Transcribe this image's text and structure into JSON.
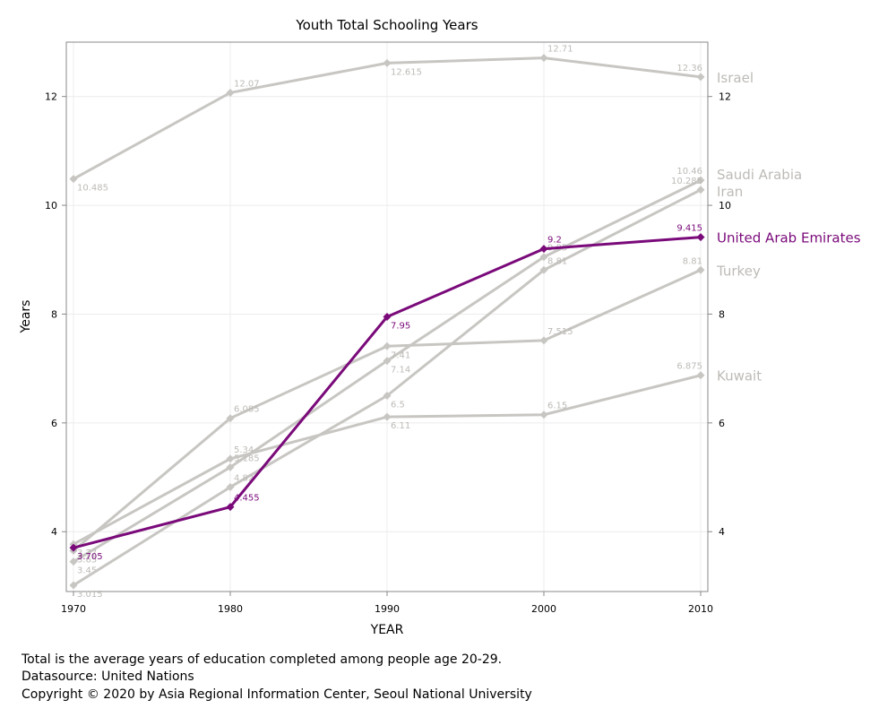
{
  "chart_data": {
    "type": "line",
    "title": "Youth Total Schooling Years",
    "xlabel": "YEAR",
    "ylabel": "Years",
    "x": [
      1970,
      1980,
      1990,
      2000,
      2010
    ],
    "xlim": [
      1970,
      2010
    ],
    "ylim": [
      2.9,
      13.0
    ],
    "yticks": [
      4,
      6,
      8,
      10,
      12
    ],
    "grid": true,
    "highlight_color": "#7a0a7a",
    "base_color": "#c8c6c2",
    "series": [
      {
        "name": "Israel",
        "values": [
          10.485,
          12.07,
          12.615,
          12.71,
          12.36
        ],
        "labels": [
          "10.485",
          "12.07",
          "12.615",
          "12.71",
          "12.36"
        ],
        "highlight": false
      },
      {
        "name": "Saudi Arabia",
        "values": [
          3.45,
          5.185,
          7.14,
          9.05,
          10.46
        ],
        "labels": [
          "3.45",
          "5.185",
          "7.14",
          "9.05",
          "10.46"
        ],
        "highlight": false
      },
      {
        "name": "Iran",
        "values": [
          3.015,
          4.82,
          6.5,
          8.81,
          10.285
        ],
        "labels": [
          "3.015",
          "4.82",
          "6.5",
          "8.81",
          "10.285"
        ],
        "highlight": false
      },
      {
        "name": "Turkey",
        "values": [
          3.65,
          6.085,
          7.41,
          7.515,
          8.81
        ],
        "labels": [
          "3.65",
          "6.085",
          "7.41",
          "7.515",
          "8.81"
        ],
        "highlight": false
      },
      {
        "name": "Kuwait",
        "values": [
          3.77,
          5.34,
          6.11,
          6.15,
          6.875
        ],
        "labels": [
          "3.77",
          "5.34",
          "6.11",
          "6.15",
          "6.875"
        ],
        "highlight": false
      },
      {
        "name": "United Arab Emirates",
        "values": [
          3.705,
          4.455,
          7.95,
          9.2,
          9.415
        ],
        "labels": [
          "3.705",
          "4.455",
          "7.95",
          "9.2",
          "9.415"
        ],
        "highlight": true
      }
    ]
  },
  "notes": [
    "Total is the average years of education completed among people age 20-29.",
    "Datasource: United Nations",
    "Copyright © 2020 by Asia Regional Information Center, Seoul National University"
  ]
}
